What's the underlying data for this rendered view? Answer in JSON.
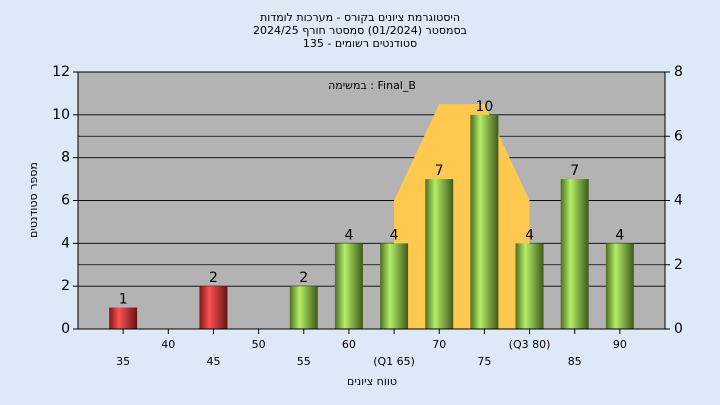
{
  "chart_data": {
    "type": "bar",
    "title": [
      "היסטוגרמת ציונים בקורס - מערכות לומדות",
      "בסמסטר  (01/2024)  סמסטר חורף 2024/25",
      "סטודנטים רשומים - 135"
    ],
    "annotation": "במשימה : Final_B",
    "x_label": "טווח ציונים",
    "y_label": "מספר סטודנטים",
    "x": [
      35,
      40,
      45,
      50,
      55,
      60,
      65,
      70,
      75,
      80,
      85,
      90
    ],
    "values": [
      1,
      0,
      2,
      0,
      2,
      4,
      4,
      7,
      10,
      4,
      7,
      4
    ],
    "colors": [
      "#e02a2a",
      "#e02a2a",
      "#e02a2a",
      "#e02a2a",
      "#8cc63f",
      "#8cc63f",
      "#8cc63f",
      "#8cc63f",
      "#8cc63f",
      "#8cc63f",
      "#8cc63f",
      "#8cc63f"
    ],
    "area": {
      "axis": "y2",
      "color": "#ffc94f",
      "x": [
        65,
        70,
        75,
        80
      ],
      "values": [
        4,
        7,
        7,
        4
      ]
    },
    "xlim": [
      30,
      95
    ],
    "xticks": [
      35,
      40,
      45,
      50,
      55,
      60,
      {
        "value": 65,
        "label": "(Q1 65)"
      },
      70,
      75,
      {
        "value": 80,
        "label": "(Q3 80)"
      },
      85,
      90
    ],
    "ylim": [
      0,
      12
    ],
    "yticks": [
      0,
      2,
      4,
      6,
      8,
      10,
      12
    ],
    "y2lim": [
      0,
      8
    ],
    "y2ticks": [
      0,
      2,
      4,
      6,
      8
    ],
    "grid": true
  }
}
